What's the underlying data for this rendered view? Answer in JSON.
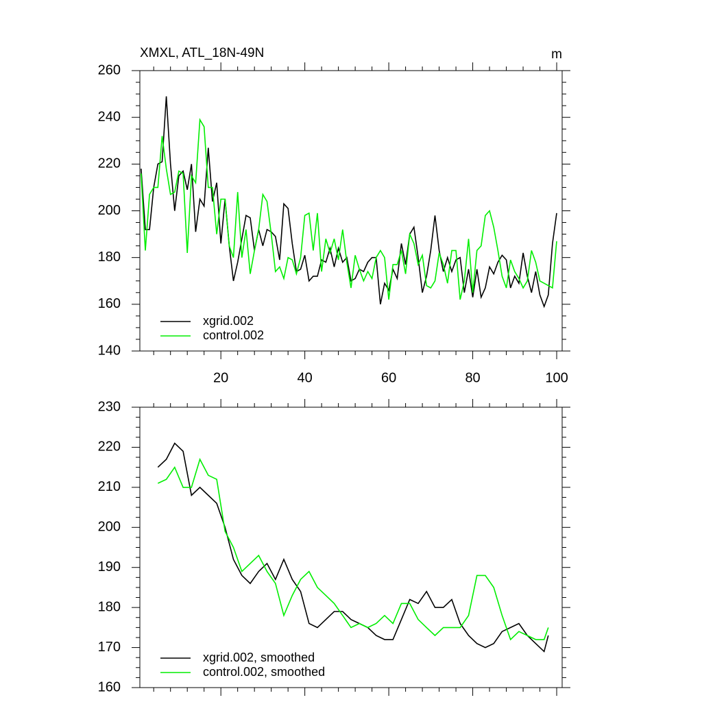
{
  "chart_data": [
    {
      "type": "line",
      "title": "XMXL, ATL_18N-49N",
      "y_unit_label": "m",
      "x": [
        1,
        2,
        3,
        4,
        5,
        6,
        7,
        8,
        9,
        10,
        11,
        12,
        13,
        14,
        15,
        16,
        17,
        18,
        19,
        20,
        21,
        22,
        23,
        24,
        25,
        26,
        27,
        28,
        29,
        30,
        31,
        32,
        33,
        34,
        35,
        36,
        37,
        38,
        39,
        40,
        41,
        42,
        43,
        44,
        45,
        46,
        47,
        48,
        49,
        50,
        51,
        52,
        53,
        54,
        55,
        56,
        57,
        58,
        59,
        60,
        61,
        62,
        63,
        64,
        65,
        66,
        67,
        68,
        69,
        70,
        71,
        72,
        73,
        74,
        75,
        76,
        77,
        78,
        79,
        80,
        81,
        82,
        83,
        84,
        85,
        86,
        87,
        88,
        89,
        90,
        91,
        92,
        93,
        94,
        95,
        96,
        97,
        98,
        99,
        100
      ],
      "series": [
        {
          "name": "xgrid.002",
          "color": "#000000",
          "values": [
            218,
            192,
            192,
            210,
            220,
            221,
            249,
            220,
            200,
            215,
            217,
            209,
            220,
            191,
            205,
            202,
            227,
            204,
            212,
            186,
            205,
            185,
            170,
            178,
            188,
            198,
            197,
            183,
            192,
            185,
            192,
            191,
            189,
            179,
            203,
            201,
            186,
            174,
            175,
            181,
            170,
            172,
            172,
            179,
            178,
            184,
            176,
            184,
            178,
            180,
            170,
            171,
            175,
            174,
            178,
            180,
            180,
            160,
            169,
            166,
            175,
            171,
            186,
            177,
            190,
            193,
            180,
            165,
            172,
            183,
            198,
            183,
            174,
            180,
            174,
            179,
            180,
            165,
            175,
            163,
            175,
            163,
            167,
            176,
            173,
            178,
            181,
            179,
            167,
            172,
            169,
            182,
            172,
            165,
            174,
            164,
            159,
            164,
            186,
            199
          ]
        },
        {
          "name": "control.002",
          "color": "#00ee00",
          "values": [
            216,
            183,
            207,
            210,
            210,
            232,
            218,
            207,
            208,
            217,
            216,
            182,
            215,
            212,
            239,
            236,
            210,
            210,
            190,
            205,
            205,
            185,
            180,
            208,
            180,
            192,
            173,
            183,
            192,
            207,
            204,
            190,
            174,
            176,
            171,
            180,
            179,
            173,
            180,
            198,
            199,
            183,
            199,
            174,
            188,
            182,
            188,
            179,
            192,
            178,
            167,
            181,
            175,
            170,
            174,
            171,
            180,
            183,
            180,
            162,
            177,
            177,
            183,
            173,
            190,
            186,
            177,
            181,
            168,
            167,
            170,
            182,
            177,
            169,
            183,
            183,
            162,
            170,
            188,
            165,
            183,
            185,
            198,
            200,
            193,
            183,
            172,
            167,
            179,
            174,
            171,
            167,
            170,
            183,
            178,
            170,
            169,
            168,
            167,
            187
          ]
        }
      ],
      "xlim": [
        0.7,
        101.3
      ],
      "xticks": [
        20,
        40,
        60,
        80,
        100
      ],
      "ylim": [
        140,
        260
      ],
      "yticks": [
        140,
        160,
        180,
        200,
        220,
        240,
        260
      ],
      "legend": "lower left"
    },
    {
      "type": "line",
      "x": [
        5,
        7,
        9,
        11,
        13,
        15,
        17,
        19,
        21,
        23,
        25,
        27,
        29,
        31,
        33,
        35,
        37,
        39,
        41,
        43,
        45,
        47,
        49,
        51,
        53,
        55,
        57,
        59,
        61,
        63,
        65,
        67,
        69,
        71,
        73,
        75,
        77,
        79,
        81,
        83,
        85,
        87,
        89,
        91,
        93,
        95,
        97,
        98
      ],
      "series": [
        {
          "name": "xgrid.002, smoothed",
          "color": "#000000",
          "values": [
            215,
            217,
            221,
            219,
            208,
            210,
            208,
            206,
            200,
            192,
            188,
            186,
            189,
            191,
            187,
            192,
            187,
            184,
            176,
            175,
            177,
            179,
            179,
            177,
            176,
            175,
            173,
            172,
            172,
            177,
            182,
            181,
            184,
            180,
            180,
            182,
            176,
            173,
            171,
            170,
            171,
            174,
            175,
            176,
            173,
            171,
            169,
            173
          ]
        },
        {
          "name": "control.002, smoothed",
          "color": "#00ee00",
          "values": [
            211,
            212,
            215,
            210,
            210,
            217,
            213,
            212,
            199,
            195,
            189,
            191,
            193,
            189,
            186,
            178,
            183,
            187,
            189,
            185,
            183,
            181,
            178,
            175,
            176,
            175,
            176,
            178,
            176,
            181,
            181,
            177,
            175,
            173,
            175,
            175,
            175,
            178,
            188,
            188,
            185,
            178,
            172,
            174,
            173,
            172,
            172,
            175
          ]
        }
      ],
      "xlim": [
        0.7,
        101.3
      ],
      "ylim": [
        160,
        230
      ],
      "yticks": [
        160,
        170,
        180,
        190,
        200,
        210,
        220,
        230
      ],
      "legend": "lower left"
    }
  ]
}
